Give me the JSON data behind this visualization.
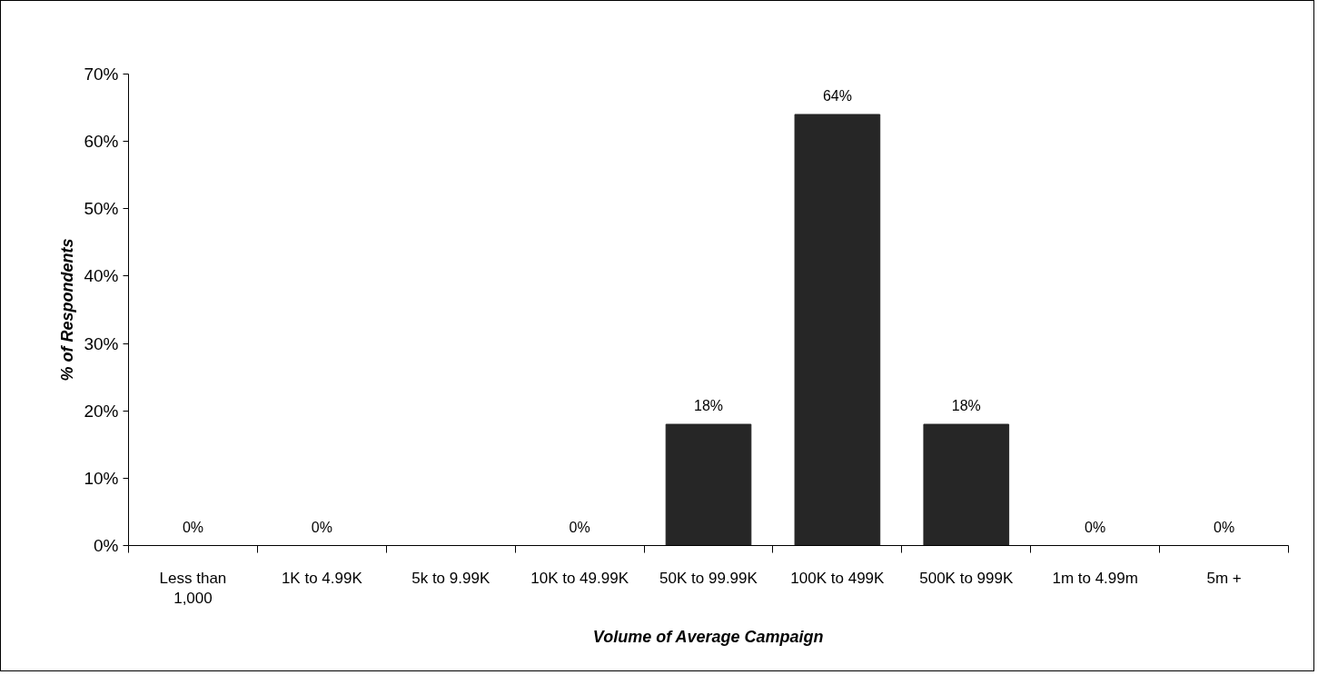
{
  "chart_data": {
    "type": "bar",
    "xlabel": "Volume of Average Campaign",
    "ylabel": "% of Respondents",
    "categories": [
      "Less than 1,000",
      "1K to 4.99K",
      "5k to 9.99K",
      "10K to 49.99K",
      "50K to 99.99K",
      "100K to 499K",
      "500K to 999K",
      "1m to 4.99m",
      "5m +"
    ],
    "values": [
      0,
      0,
      0,
      0,
      18,
      64,
      18,
      0,
      0
    ],
    "value_labels": [
      "0%",
      "0%",
      null,
      "0%",
      "18%",
      "64%",
      "18%",
      "0%",
      "0%"
    ],
    "color": "#262626",
    "ylim": [
      0,
      70
    ],
    "yticks": [
      {
        "value": 0,
        "label": "0%"
      },
      {
        "value": 10,
        "label": "10%"
      },
      {
        "value": 20,
        "label": "20%"
      },
      {
        "value": 30,
        "label": "30%"
      },
      {
        "value": 40,
        "label": "40%"
      },
      {
        "value": 50,
        "label": "50%"
      },
      {
        "value": 60,
        "label": "60%"
      },
      {
        "value": 70,
        "label": "70%"
      }
    ],
    "grid": false
  }
}
